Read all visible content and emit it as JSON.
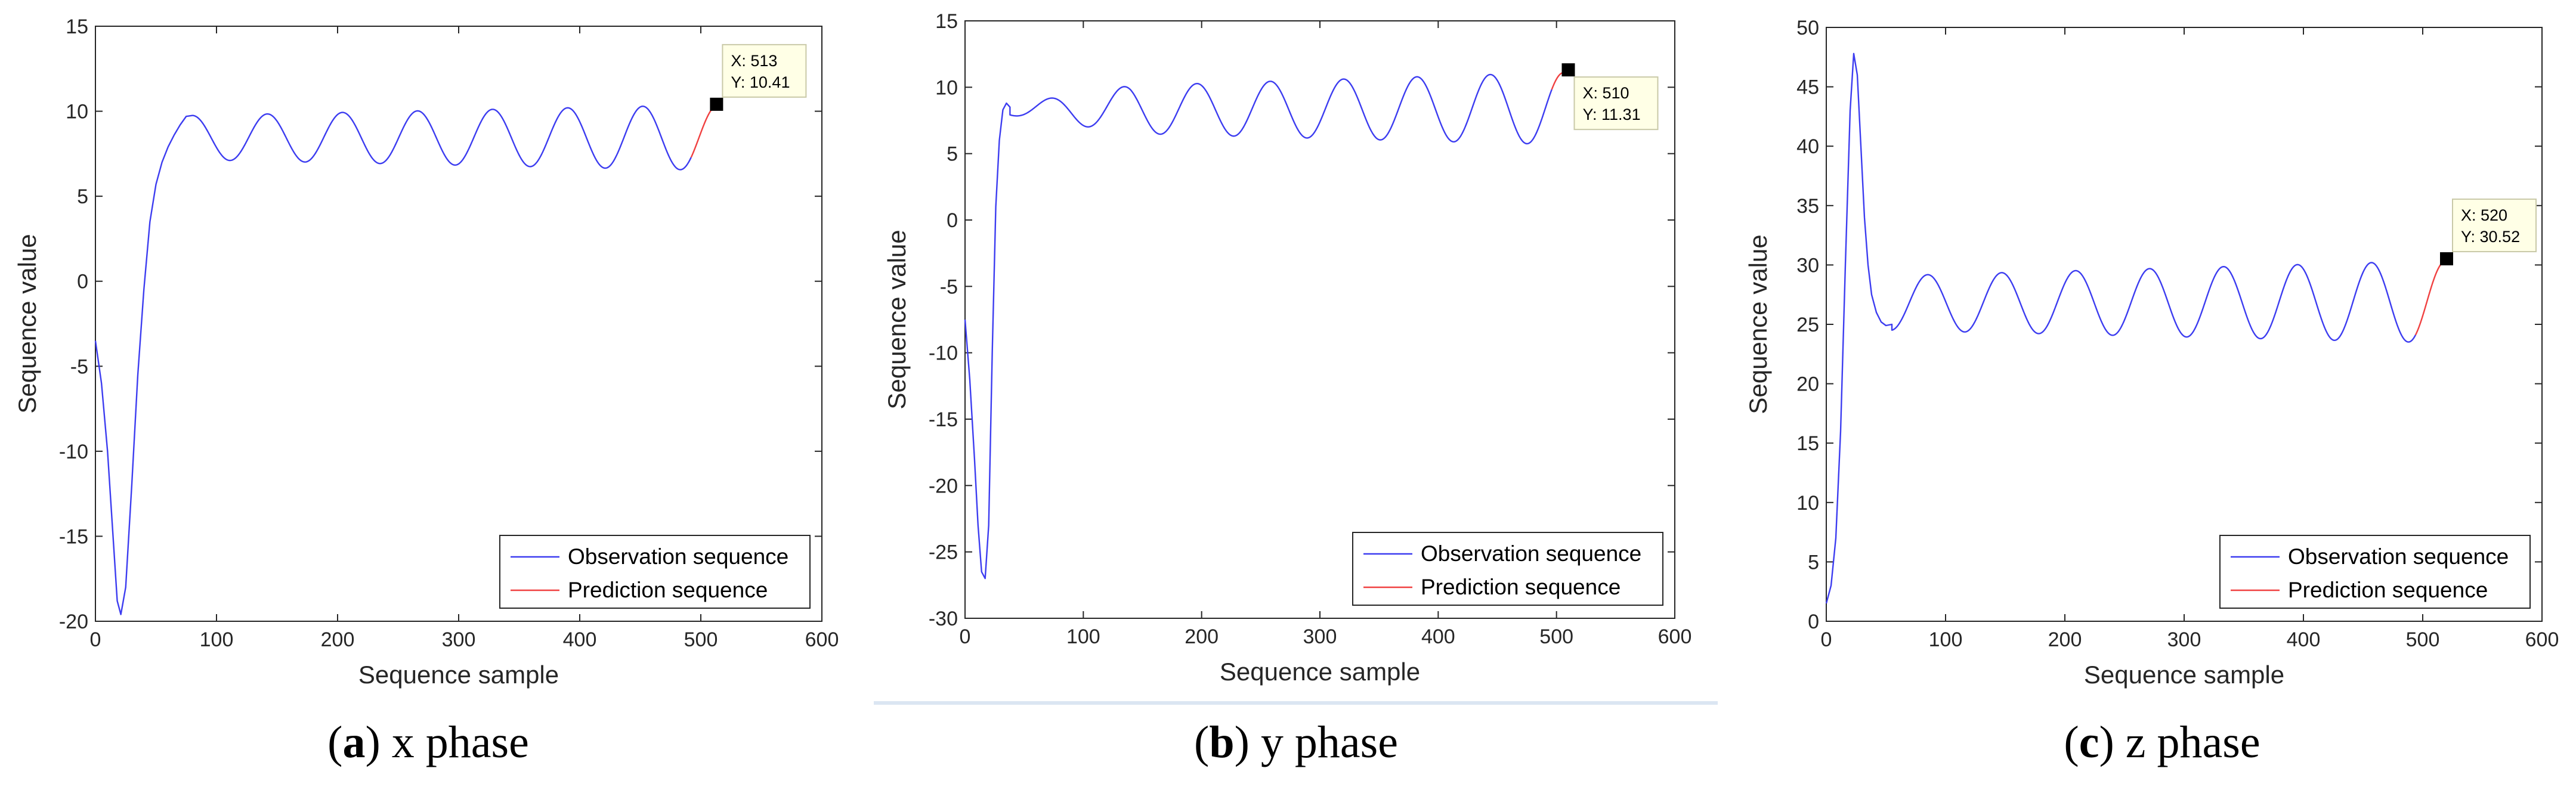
{
  "chart_data": [
    {
      "type": "line",
      "caption_letter": "a",
      "caption_text": ") x phase",
      "caption_open": "(",
      "xlabel": "Sequence sample",
      "ylabel": "Sequence value",
      "xlim": [
        0,
        600
      ],
      "ylim": [
        -20,
        15
      ],
      "xticks": [
        "0",
        "100",
        "200",
        "300",
        "400",
        "500",
        "600"
      ],
      "yticks": [
        "-20",
        "-15",
        "-10",
        "-5",
        "0",
        "5",
        "10",
        "15"
      ],
      "grid": false,
      "legend_position": "bottom-right",
      "series": [
        {
          "name": "Observation sequence",
          "color": "#3c3cf0",
          "segments": [
            {
              "kind": "points",
              "x": [
                0,
                5,
                10,
                15,
                18,
                21,
                25,
                30,
                35,
                40,
                45,
                50,
                55,
                60,
                65,
                70,
                75
              ],
              "y": [
                -3.5,
                -6,
                -10,
                -15.5,
                -18.8,
                -19.6,
                -18,
                -12,
                -5.5,
                -0.5,
                3.5,
                5.7,
                7.0,
                7.9,
                8.6,
                9.2,
                9.7
              ]
            },
            {
              "kind": "osc",
              "x_start": 80,
              "x_end": 492,
              "period": 62,
              "phase_peak": 80,
              "mid_start": 8.45,
              "mid_end": 8.45,
              "amp_start": 1.3,
              "amp_end": 1.9
            }
          ]
        },
        {
          "name": "Prediction sequence",
          "color": "#f04040",
          "segments": [
            {
              "kind": "osc",
              "x_start": 492,
              "x_end": 513,
              "period": 62,
              "phase_peak": 80,
              "mid_start": 8.45,
              "mid_end": 8.45,
              "amp_start": 1.9,
              "amp_end": 1.9,
              "end_y": 10.41
            }
          ]
        }
      ],
      "datatip": {
        "x": 513,
        "y": 10.41,
        "line1": "X: 513",
        "line2": "Y: 10.41",
        "placement": "above-right"
      }
    },
    {
      "type": "line",
      "caption_letter": "b",
      "caption_text": ") y phase",
      "caption_open": "(",
      "xlabel": "Sequence sample",
      "ylabel": "Sequence value",
      "xlim": [
        0,
        600
      ],
      "ylim": [
        -30,
        15
      ],
      "xticks": [
        "0",
        "100",
        "200",
        "300",
        "400",
        "500",
        "600"
      ],
      "yticks": [
        "-30",
        "-25",
        "-20",
        "-15",
        "-10",
        "-5",
        "0",
        "5",
        "10",
        "15"
      ],
      "grid": false,
      "legend_position": "bottom-right",
      "series": [
        {
          "name": "Observation sequence",
          "color": "#3c3cf0",
          "segments": [
            {
              "kind": "points",
              "x": [
                0,
                4,
                8,
                11,
                14,
                17,
                20,
                23,
                26,
                29,
                32,
                35,
                38
              ],
              "y": [
                -7.5,
                -12,
                -18,
                -23,
                -26.5,
                -27,
                -23,
                -10,
                1,
                6,
                8.3,
                8.8,
                8.5
              ]
            },
            {
              "kind": "osc",
              "x_start": 38,
              "x_end": 496,
              "period": 62,
              "phase_peak": 72,
              "mid_start": 8.3,
              "mid_end": 8.4,
              "amp_start": 0.4,
              "amp_end": 2.7,
              "amp_ramp_end": 140,
              "amp_mid": 1.8
            }
          ]
        },
        {
          "name": "Prediction sequence",
          "color": "#f04040",
          "segments": [
            {
              "kind": "osc",
              "x_start": 496,
              "x_end": 510,
              "period": 62,
              "phase_peak": 72,
              "mid_start": 8.4,
              "mid_end": 8.4,
              "amp_start": 2.7,
              "amp_end": 2.7,
              "end_y": 11.31
            }
          ]
        }
      ],
      "datatip": {
        "x": 510,
        "y": 11.31,
        "line1": "X: 510",
        "line2": "Y: 11.31",
        "placement": "below-right"
      }
    },
    {
      "type": "line",
      "caption_letter": "c",
      "caption_text": ") z phase",
      "caption_open": "(",
      "xlabel": "Sequence sample",
      "ylabel": "Sequence value",
      "xlim": [
        0,
        600
      ],
      "ylim": [
        0,
        50
      ],
      "xticks": [
        "0",
        "100",
        "200",
        "300",
        "400",
        "500",
        "600"
      ],
      "yticks": [
        "0",
        "5",
        "10",
        "15",
        "20",
        "25",
        "30",
        "35",
        "40",
        "45",
        "50"
      ],
      "grid": false,
      "legend_position": "bottom-right",
      "series": [
        {
          "name": "Observation sequence",
          "color": "#3c3cf0",
          "segments": [
            {
              "kind": "points",
              "x": [
                0,
                4,
                8,
                12,
                16,
                20,
                23,
                26,
                29,
                32,
                35,
                38,
                42,
                46,
                50,
                55
              ],
              "y": [
                1.5,
                3,
                7,
                16,
                30,
                43,
                47.8,
                46,
                40,
                34,
                30,
                27.5,
                26,
                25.2,
                24.9,
                25.0
              ]
            },
            {
              "kind": "osc",
              "x_start": 55,
              "x_end": 494,
              "period": 62,
              "phase_peak": 85,
              "mid_start": 26.8,
              "mid_end": 26.9,
              "amp_start": 2.3,
              "amp_end": 3.4
            }
          ]
        },
        {
          "name": "Prediction sequence",
          "color": "#f04040",
          "segments": [
            {
              "kind": "osc",
              "x_start": 494,
              "x_end": 520,
              "period": 62,
              "phase_peak": 85,
              "mid_start": 26.9,
              "mid_end": 26.9,
              "amp_start": 3.4,
              "amp_end": 3.4,
              "end_y": 30.52
            }
          ]
        }
      ],
      "datatip": {
        "x": 520,
        "y": 30.52,
        "line1": "X: 520",
        "line2": "Y: 30.52",
        "placement": "above-right"
      }
    }
  ],
  "colors": {
    "observation": "#3c3cf0",
    "prediction": "#f04040",
    "datatip_bg": "#ffffe6",
    "axis": "#262626",
    "separator": "#dbe6f2"
  }
}
